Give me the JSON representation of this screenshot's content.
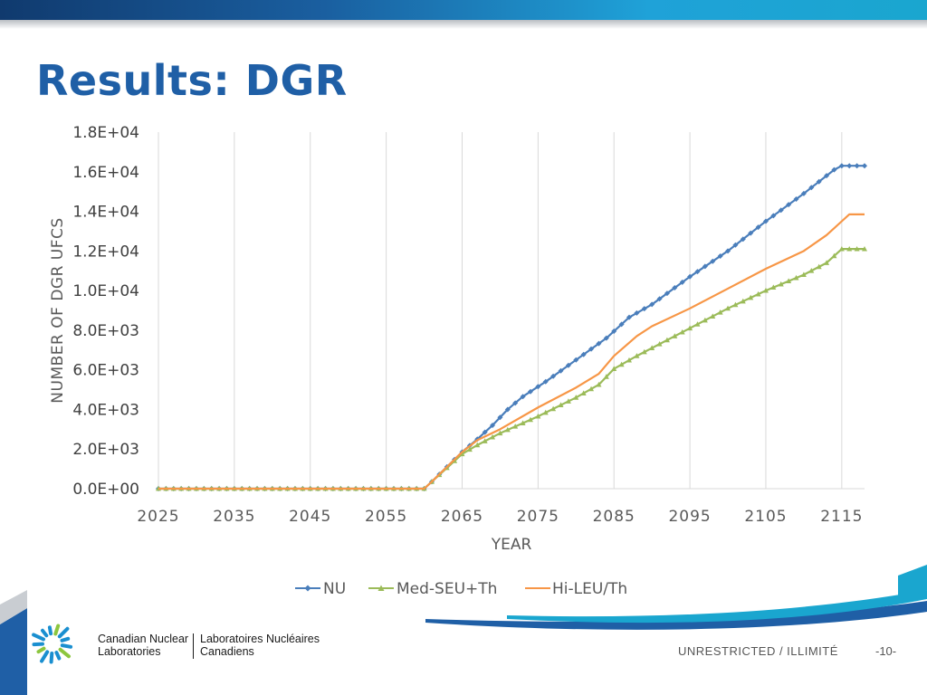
{
  "slide": {
    "title": "Results: DGR",
    "footer": {
      "organization_en_line1": "Canadian Nuclear",
      "organization_en_line2": "Laboratories",
      "organization_fr_line1": "Laboratoires Nucléaires",
      "organization_fr_line2": "Canadiens",
      "classification": "UNRESTRICTED / ILLIMITÉ",
      "page_number": "-10-"
    },
    "colors": {
      "title": "#1f5fa6",
      "band_dark": "#103a6e",
      "band_light": "#1fa2d8",
      "logo_blue": "#1a8fd0",
      "logo_green": "#8cc63f"
    }
  },
  "chart_data": {
    "type": "line",
    "title": "",
    "xlabel": "YEAR",
    "ylabel": "NUMBER OF DGR UFCS",
    "xlim": [
      2025,
      2118
    ],
    "ylim": [
      0,
      18000
    ],
    "x_ticks": [
      2025,
      2035,
      2045,
      2055,
      2065,
      2075,
      2085,
      2095,
      2105,
      2115
    ],
    "x_tick_labels": [
      "2025",
      "2035",
      "2045",
      "2055",
      "2065",
      "2075",
      "2085",
      "2095",
      "2105",
      "2115"
    ],
    "y_ticks": [
      0,
      2000,
      4000,
      6000,
      8000,
      10000,
      12000,
      14000,
      16000,
      18000
    ],
    "y_tick_labels": [
      "0.0E+00",
      "2.0E+03",
      "4.0E+03",
      "6.0E+03",
      "8.0E+03",
      "1.0E+04",
      "1.2E+04",
      "1.4E+04",
      "1.6E+04",
      "1.8E+04"
    ],
    "grid": "vertical",
    "legend_position": "bottom",
    "series": [
      {
        "name": "NU",
        "color": "#4a7ebb",
        "marker": "diamond",
        "points": [
          [
            2025,
            0
          ],
          [
            2060,
            0
          ],
          [
            2061,
            350
          ],
          [
            2063,
            1100
          ],
          [
            2065,
            1850
          ],
          [
            2067,
            2500
          ],
          [
            2069,
            3200
          ],
          [
            2071,
            4000
          ],
          [
            2073,
            4650
          ],
          [
            2076,
            5400
          ],
          [
            2080,
            6500
          ],
          [
            2084,
            7600
          ],
          [
            2087,
            8650
          ],
          [
            2090,
            9300
          ],
          [
            2095,
            10700
          ],
          [
            2100,
            12000
          ],
          [
            2105,
            13500
          ],
          [
            2110,
            14900
          ],
          [
            2114,
            16100
          ],
          [
            2115,
            16300
          ],
          [
            2118,
            16300
          ]
        ]
      },
      {
        "name": "Med-SEU+Th",
        "color": "#9bbb59",
        "marker": "triangle",
        "points": [
          [
            2025,
            0
          ],
          [
            2060,
            0
          ],
          [
            2061,
            350
          ],
          [
            2063,
            1050
          ],
          [
            2065,
            1750
          ],
          [
            2067,
            2200
          ],
          [
            2070,
            2800
          ],
          [
            2075,
            3650
          ],
          [
            2080,
            4600
          ],
          [
            2083,
            5250
          ],
          [
            2085,
            6050
          ],
          [
            2088,
            6700
          ],
          [
            2095,
            8100
          ],
          [
            2100,
            9100
          ],
          [
            2105,
            10000
          ],
          [
            2110,
            10800
          ],
          [
            2113,
            11400
          ],
          [
            2115,
            12100
          ],
          [
            2118,
            12100
          ]
        ]
      },
      {
        "name": "Hi-LEU/Th",
        "color": "#f79646",
        "marker": "none",
        "points": [
          [
            2025,
            0
          ],
          [
            2060,
            0
          ],
          [
            2061,
            350
          ],
          [
            2063,
            1100
          ],
          [
            2065,
            1850
          ],
          [
            2067,
            2450
          ],
          [
            2070,
            3000
          ],
          [
            2075,
            4100
          ],
          [
            2080,
            5100
          ],
          [
            2083,
            5800
          ],
          [
            2085,
            6700
          ],
          [
            2088,
            7700
          ],
          [
            2090,
            8200
          ],
          [
            2095,
            9100
          ],
          [
            2100,
            10100
          ],
          [
            2105,
            11100
          ],
          [
            2110,
            12000
          ],
          [
            2113,
            12800
          ],
          [
            2115,
            13500
          ],
          [
            2116,
            13850
          ],
          [
            2118,
            13850
          ]
        ]
      }
    ]
  }
}
